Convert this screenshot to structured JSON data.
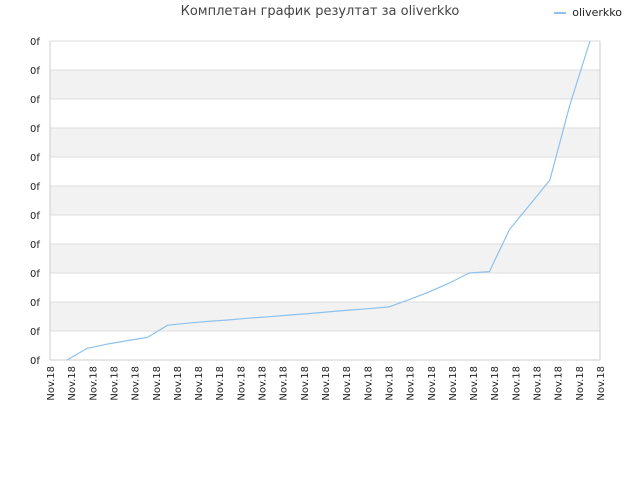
{
  "chart_data": {
    "type": "line",
    "title": "Комплетан график резултат за oliverkko",
    "xlabel": "",
    "ylabel": "",
    "x_tick_labels": [
      "Nov.18",
      "Nov.18",
      "Nov.18",
      "Nov.18",
      "Nov.18",
      "Nov.18",
      "Nov.18",
      "Nov.18",
      "Nov.18",
      "Nov.18",
      "Nov.18",
      "Nov.18",
      "Nov.18",
      "Nov.18",
      "Nov.18",
      "Nov.18",
      "Nov.18",
      "Nov.18",
      "Nov.18",
      "Nov.18",
      "Nov.18",
      "Nov.18",
      "Nov.18",
      "Nov.18",
      "Nov.18",
      "Nov.18",
      "Nov.18"
    ],
    "y_tick_labels": [
      "0f",
      "0f",
      "0f",
      "0f",
      "0f",
      "0f",
      "0f",
      "0f",
      "0f",
      "0f",
      "0f",
      "0f"
    ],
    "ylim": [
      0,
      11
    ],
    "grid": true,
    "legend_position": "top-right",
    "series": [
      {
        "name": "oliverkko",
        "color": "#8ec1ec",
        "values": [
          0,
          0.4,
          0.55,
          0.67,
          0.78,
          1.2,
          1.27,
          1.33,
          1.38,
          1.44,
          1.49,
          1.55,
          1.6,
          1.66,
          1.72,
          1.77,
          1.83,
          2.08,
          2.35,
          2.65,
          3.0,
          3.05,
          4.5,
          5.35,
          6.2,
          8.8,
          11.0
        ]
      }
    ]
  },
  "colors": {
    "band": "#f2f2f2",
    "grid": "#dddddd",
    "axis": "#cccccc",
    "text": "#222222"
  }
}
